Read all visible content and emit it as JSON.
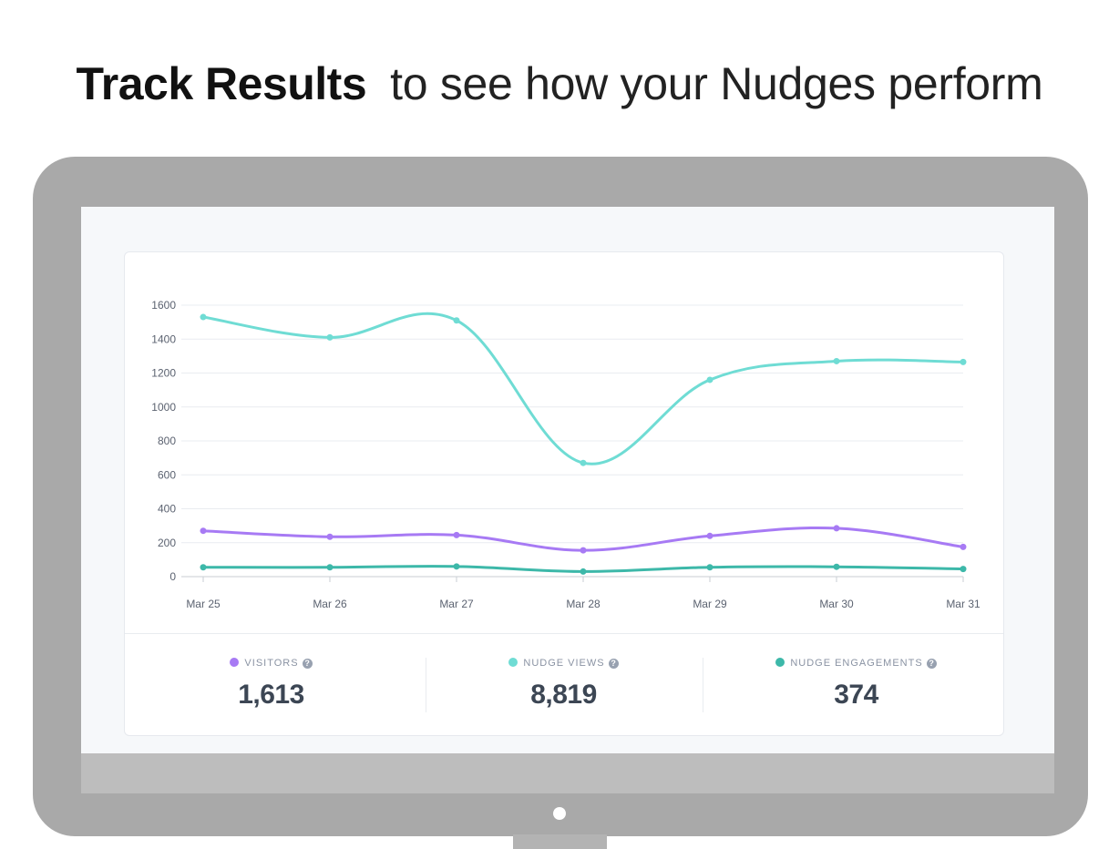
{
  "headline": {
    "bold": "Track Results",
    "light": "to see how your Nudges perform"
  },
  "chart_data": {
    "type": "line",
    "x": [
      "Mar 25",
      "Mar 26",
      "Mar 27",
      "Mar 28",
      "Mar 29",
      "Mar 30",
      "Mar 31"
    ],
    "y_ticks": [
      "0",
      "200",
      "400",
      "600",
      "800",
      "1000",
      "1200",
      "1400",
      "1600"
    ],
    "ylim": [
      0,
      1600
    ],
    "grid": true,
    "series": [
      {
        "name": "NUDGE VIEWS",
        "color": "#6fdcd4",
        "values": [
          1530,
          1410,
          1510,
          670,
          1160,
          1270,
          1265
        ]
      },
      {
        "name": "VISITORS",
        "color": "#a77af4",
        "values": [
          270,
          235,
          245,
          155,
          240,
          285,
          175
        ]
      },
      {
        "name": "NUDGE ENGAGEMENTS",
        "color": "#3db8a9",
        "values": [
          55,
          55,
          60,
          30,
          55,
          58,
          45
        ]
      }
    ]
  },
  "stats": [
    {
      "label": "VISITORS",
      "value": "1,613",
      "color": "#a77af4"
    },
    {
      "label": "NUDGE VIEWS",
      "value": "8,819",
      "color": "#6fdcd4"
    },
    {
      "label": "NUDGE ENGAGEMENTS",
      "value": "374",
      "color": "#3db8a9"
    }
  ],
  "help_glyph": "?"
}
